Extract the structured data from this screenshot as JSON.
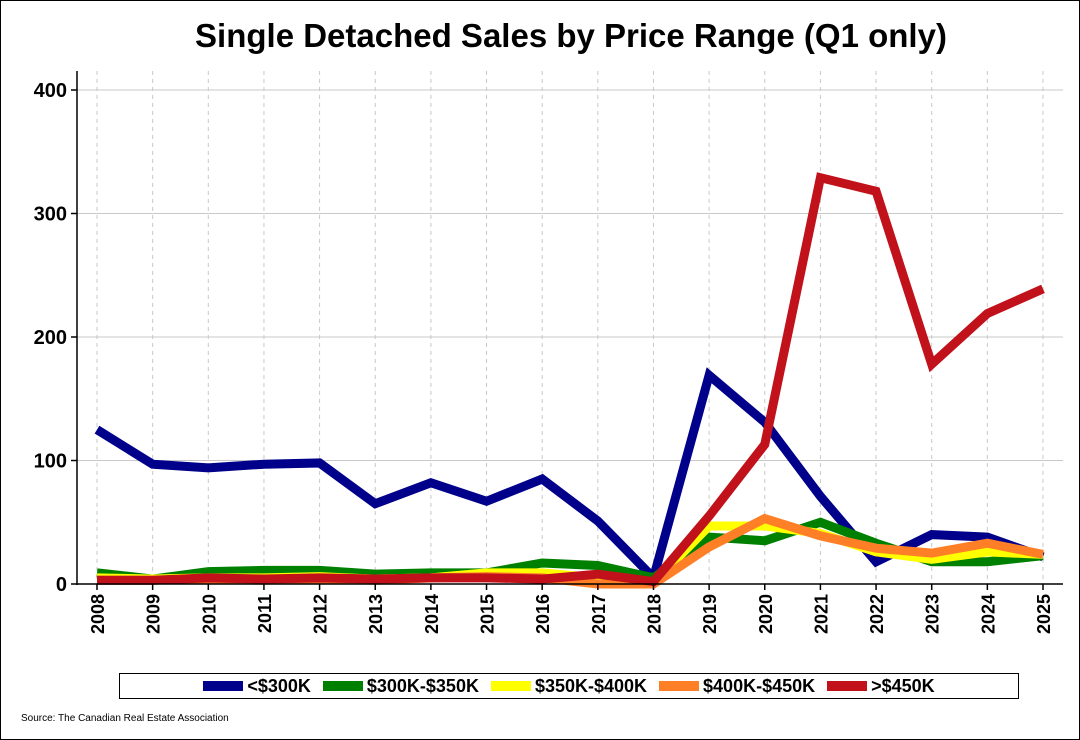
{
  "chart_data": {
    "type": "line",
    "title": "Single Detached Sales by Price Range (Q1 only)",
    "source": "Source: The Canadian Real Estate Association",
    "x": [
      "2008",
      "2009",
      "2010",
      "2011",
      "2012",
      "2013",
      "2014",
      "2015",
      "2016",
      "2017",
      "2018",
      "2019",
      "2020",
      "2021",
      "2022",
      "2023",
      "2024",
      "2025"
    ],
    "ylim": [
      0,
      400
    ],
    "yticks": [
      "0",
      "100",
      "200",
      "300",
      "400"
    ],
    "grid": true,
    "legend_position": "bottom",
    "series": [
      {
        "name": "<$300K",
        "color": "#00008B",
        "values": [
          125,
          97,
          94,
          97,
          98,
          65,
          82,
          67,
          85,
          51,
          5,
          169,
          131,
          71,
          18,
          40,
          38,
          22
        ]
      },
      {
        "name": "$300K-$350K",
        "color": "#008000",
        "values": [
          9,
          4,
          10,
          11,
          11,
          8,
          9,
          9,
          17,
          15,
          5,
          38,
          35,
          50,
          33,
          18,
          18,
          23
        ]
      },
      {
        "name": "$350K-$400K",
        "color": "#FFFF00",
        "values": [
          5,
          4,
          5,
          5,
          6,
          4,
          5,
          9,
          9,
          5,
          1,
          47,
          47,
          41,
          26,
          20,
          26,
          24
        ]
      },
      {
        "name": "$400K-$450K",
        "color": "#FF7F27",
        "values": [
          3,
          3,
          4,
          3,
          4,
          3,
          5,
          6,
          5,
          0,
          0,
          30,
          53,
          39,
          29,
          25,
          33,
          24
        ]
      },
      {
        "name": ">$450K",
        "color": "#C1111B",
        "values": [
          3,
          3,
          5,
          4,
          5,
          4,
          5,
          5,
          4,
          8,
          2,
          55,
          113,
          329,
          318,
          178,
          219,
          239
        ]
      }
    ]
  }
}
